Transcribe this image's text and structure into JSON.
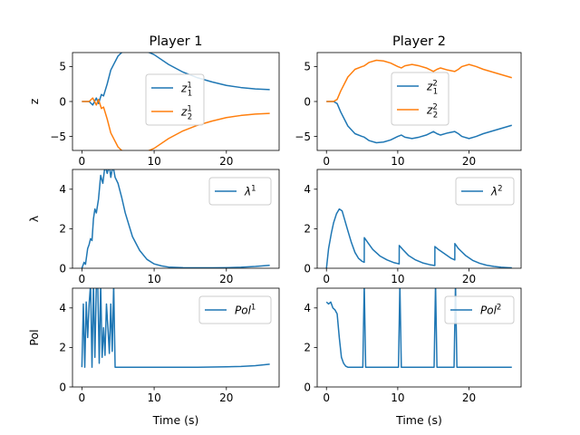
{
  "figure": {
    "col_titles": [
      "Player 1",
      "Player 2"
    ],
    "row_ylabels": [
      "z",
      "λ",
      "Pol"
    ],
    "xlabel": "Time (s)"
  },
  "colors": {
    "blue": "#1f77b4",
    "orange": "#ff7f0e"
  },
  "chart_data": [
    {
      "type": "line",
      "title": "Player 1",
      "ylabel": "z",
      "xlim": [
        -1.3,
        27.3
      ],
      "ylim": [
        -7,
        7
      ],
      "xticks": [
        0,
        10,
        20
      ],
      "yticks": [
        -5,
        0,
        5
      ],
      "legend": {
        "placement": "center",
        "entries": [
          {
            "base": "z",
            "sub": "1",
            "sup": "1"
          },
          {
            "base": "z",
            "sub": "2",
            "sup": "1"
          }
        ]
      },
      "series": [
        {
          "name": "z₁¹",
          "color": "#1f77b4",
          "x": [
            0,
            1,
            1.5,
            2,
            2.3,
            2.7,
            3,
            3.5,
            4,
            5,
            6,
            8,
            10,
            12,
            14,
            16,
            18,
            20,
            22,
            24,
            26
          ],
          "y": [
            0,
            0,
            -0.5,
            0.5,
            -0.3,
            1,
            0.8,
            2.5,
            4.5,
            6.5,
            7.5,
            7.6,
            6.7,
            5.3,
            4.2,
            3.4,
            2.8,
            2.3,
            2.0,
            1.8,
            1.7
          ]
        },
        {
          "name": "z₂¹",
          "color": "#ff7f0e",
          "x": [
            0,
            1,
            1.5,
            2,
            2.3,
            2.7,
            3,
            3.5,
            4,
            5,
            6,
            8,
            10,
            12,
            14,
            16,
            18,
            20,
            22,
            24,
            26
          ],
          "y": [
            0,
            0,
            0.5,
            -0.5,
            0.3,
            -1,
            -0.8,
            -2.5,
            -4.5,
            -6.5,
            -7.5,
            -7.6,
            -6.7,
            -5.3,
            -4.2,
            -3.4,
            -2.8,
            -2.3,
            -2.0,
            -1.8,
            -1.7
          ]
        }
      ]
    },
    {
      "type": "line",
      "title": "Player 2",
      "ylabel": "",
      "xlim": [
        -1.3,
        27.3
      ],
      "ylim": [
        -7,
        7
      ],
      "xticks": [
        0,
        10,
        20
      ],
      "yticks": [
        -5,
        0,
        5
      ],
      "legend": {
        "placement": "center",
        "entries": [
          {
            "base": "z",
            "sub": "1",
            "sup": "2"
          },
          {
            "base": "z",
            "sub": "2",
            "sup": "2"
          }
        ]
      },
      "series": [
        {
          "name": "z₁²",
          "color": "#1f77b4",
          "x": [
            0,
            1,
            1.5,
            2,
            3,
            4,
            5,
            5.3,
            6,
            7,
            8,
            9,
            10,
            10.5,
            11,
            12,
            13,
            14,
            15,
            15.5,
            16,
            17,
            18,
            18.5,
            19,
            20,
            21,
            22,
            24,
            26
          ],
          "y": [
            0,
            0,
            -0.3,
            -1.5,
            -3.5,
            -4.6,
            -5.0,
            -5.1,
            -5.6,
            -5.9,
            -5.8,
            -5.5,
            -5.0,
            -4.8,
            -5.1,
            -5.3,
            -5.1,
            -4.8,
            -4.3,
            -4.6,
            -4.8,
            -4.5,
            -4.3,
            -4.6,
            -5.0,
            -5.3,
            -5.0,
            -4.6,
            -4.0,
            -3.4
          ]
        },
        {
          "name": "z₂²",
          "color": "#ff7f0e",
          "x": [
            0,
            1,
            1.5,
            2,
            3,
            4,
            5,
            5.3,
            6,
            7,
            8,
            9,
            10,
            10.5,
            11,
            12,
            13,
            14,
            15,
            15.5,
            16,
            17,
            18,
            18.5,
            19,
            20,
            21,
            22,
            24,
            26
          ],
          "y": [
            0,
            0,
            0.3,
            1.5,
            3.5,
            4.6,
            5.0,
            5.1,
            5.6,
            5.9,
            5.8,
            5.5,
            5.0,
            4.8,
            5.1,
            5.3,
            5.1,
            4.8,
            4.3,
            4.6,
            4.8,
            4.5,
            4.3,
            4.6,
            5.0,
            5.3,
            5.0,
            4.6,
            4.0,
            3.4
          ]
        }
      ]
    },
    {
      "type": "line",
      "title": "",
      "ylabel": "λ",
      "xlim": [
        -1.3,
        27.3
      ],
      "ylim": [
        0,
        5
      ],
      "xticks": [
        0,
        10,
        20
      ],
      "yticks": [
        0,
        2,
        4
      ],
      "legend": {
        "placement": "upper right",
        "entries": [
          {
            "base": "λ",
            "sub": "",
            "sup": "1"
          }
        ]
      },
      "series": [
        {
          "name": "λ¹",
          "color": "#1f77b4",
          "x": [
            0,
            0.3,
            0.5,
            0.8,
            1.0,
            1.2,
            1.4,
            1.6,
            1.8,
            2.0,
            2.3,
            2.6,
            2.9,
            3.2,
            3.5,
            3.8,
            4.0,
            4.3,
            4.6,
            5.0,
            5.5,
            6,
            7,
            8,
            9,
            10,
            11,
            12,
            14,
            16,
            18,
            20,
            22,
            24,
            26
          ],
          "y": [
            0,
            0.3,
            0.2,
            1.0,
            1.2,
            1.5,
            1.4,
            2.5,
            3.0,
            2.8,
            3.5,
            4.7,
            4.3,
            5.2,
            4.8,
            5.2,
            4.6,
            5.2,
            4.6,
            4.3,
            3.6,
            2.8,
            1.6,
            0.9,
            0.45,
            0.22,
            0.12,
            0.06,
            0.03,
            0.02,
            0.02,
            0.03,
            0.05,
            0.09,
            0.15
          ]
        }
      ]
    },
    {
      "type": "line",
      "title": "",
      "ylabel": "",
      "xlim": [
        -1.3,
        27.3
      ],
      "ylim": [
        0,
        5
      ],
      "xticks": [
        0,
        10,
        20
      ],
      "yticks": [
        0,
        2,
        4
      ],
      "legend": {
        "placement": "upper right",
        "entries": [
          {
            "base": "λ",
            "sub": "",
            "sup": "2"
          }
        ]
      },
      "series": [
        {
          "name": "λ²",
          "color": "#1f77b4",
          "x": [
            0,
            0.3,
            0.7,
            1.0,
            1.4,
            1.8,
            2.2,
            2.6,
            3.0,
            3.5,
            4.0,
            4.5,
            5.0,
            5.3,
            5.31,
            5.8,
            6.5,
            7.5,
            8.5,
            9.5,
            10.2,
            10.21,
            10.7,
            11.5,
            12.5,
            13.5,
            14.5,
            15.2,
            15.21,
            15.7,
            16.5,
            17.5,
            18.0,
            18.01,
            18.5,
            19.5,
            20.5,
            21.5,
            22.5,
            23.5,
            24.5,
            25.5,
            26
          ],
          "y": [
            0,
            1.0,
            1.8,
            2.3,
            2.75,
            3.0,
            2.9,
            2.4,
            1.9,
            1.3,
            0.8,
            0.5,
            0.35,
            0.3,
            1.55,
            1.3,
            0.95,
            0.62,
            0.42,
            0.28,
            0.22,
            1.15,
            0.95,
            0.65,
            0.42,
            0.27,
            0.18,
            0.14,
            1.1,
            0.95,
            0.75,
            0.5,
            0.42,
            1.25,
            1.0,
            0.65,
            0.4,
            0.25,
            0.15,
            0.09,
            0.05,
            0.03,
            0.02
          ]
        }
      ]
    },
    {
      "type": "line",
      "title": "",
      "ylabel": "Pol",
      "xlabel": "Time (s)",
      "xlim": [
        -1.3,
        27.3
      ],
      "ylim": [
        0,
        5
      ],
      "xticks": [
        0,
        10,
        20
      ],
      "yticks": [
        0,
        2,
        4
      ],
      "legend": {
        "placement": "upper right",
        "entries": [
          {
            "base": "Pol",
            "sub": "",
            "sup": "1"
          }
        ]
      },
      "series": [
        {
          "name": "Pol¹",
          "color": "#1f77b4",
          "x": [
            0,
            0.2,
            0.4,
            0.6,
            0.8,
            1.0,
            1.2,
            1.4,
            1.6,
            1.8,
            2.0,
            2.2,
            2.4,
            2.6,
            2.8,
            3.0,
            3.2,
            3.4,
            3.6,
            3.8,
            4.0,
            4.2,
            4.4,
            4.6,
            5,
            8,
            12,
            16,
            18,
            20,
            22,
            24,
            26
          ],
          "y": [
            1,
            4.2,
            1,
            4.3,
            2.5,
            4.2,
            5.2,
            1,
            5.2,
            1.5,
            5.2,
            5.2,
            1.2,
            5.2,
            1.5,
            3.0,
            1.6,
            4.2,
            3.0,
            1.7,
            4.2,
            1.8,
            5.2,
            1,
            1,
            1,
            1,
            1,
            1.01,
            1.02,
            1.04,
            1.08,
            1.15
          ]
        }
      ]
    },
    {
      "type": "line",
      "title": "",
      "ylabel": "",
      "xlabel": "Time (s)",
      "xlim": [
        -1.3,
        27.3
      ],
      "ylim": [
        0,
        5
      ],
      "xticks": [
        0,
        10,
        20
      ],
      "yticks": [
        0,
        2,
        4
      ],
      "legend": {
        "placement": "upper right",
        "entries": [
          {
            "base": "Pol",
            "sub": "",
            "sup": "2"
          }
        ]
      },
      "series": [
        {
          "name": "Pol²",
          "color": "#1f77b4",
          "x": [
            0,
            0.3,
            0.6,
            0.9,
            1.2,
            1.5,
            1.8,
            2.1,
            2.4,
            2.7,
            3.0,
            3.5,
            4,
            5.1,
            5.3,
            5.5,
            10.1,
            10.3,
            10.5,
            15.1,
            15.3,
            15.5,
            17.9,
            18.1,
            18.3,
            26
          ],
          "y": [
            4.3,
            4.2,
            4.3,
            4.0,
            3.9,
            3.7,
            2.5,
            1.5,
            1.2,
            1.05,
            1,
            1,
            1,
            1,
            5.2,
            1,
            1,
            5.2,
            1,
            1,
            5.2,
            1,
            1,
            5.2,
            1,
            1
          ]
        }
      ]
    }
  ]
}
